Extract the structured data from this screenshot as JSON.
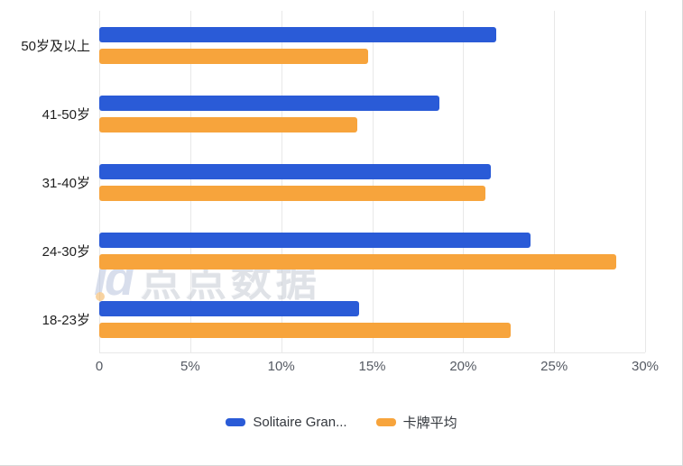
{
  "chart_data": {
    "type": "bar",
    "orientation": "horizontal",
    "title": "",
    "categories": [
      "50岁及以上",
      "41-50岁",
      "31-40岁",
      "24-30岁",
      "18-23岁"
    ],
    "series": [
      {
        "name": "Solitaire Gran...",
        "color": "#2a5bd7",
        "values": [
          21.8,
          18.7,
          21.5,
          23.7,
          14.3
        ]
      },
      {
        "name": "卡牌平均",
        "color": "#f7a43c",
        "values": [
          14.8,
          14.2,
          21.2,
          28.4,
          22.6
        ]
      }
    ],
    "xlim": [
      0,
      30
    ],
    "x_ticks": [
      "0",
      "5%",
      "10%",
      "15%",
      "20%",
      "25%",
      "30%"
    ],
    "grid": true,
    "legend_position": "bottom"
  },
  "watermark": {
    "logo": "id",
    "text": "点点数据"
  }
}
